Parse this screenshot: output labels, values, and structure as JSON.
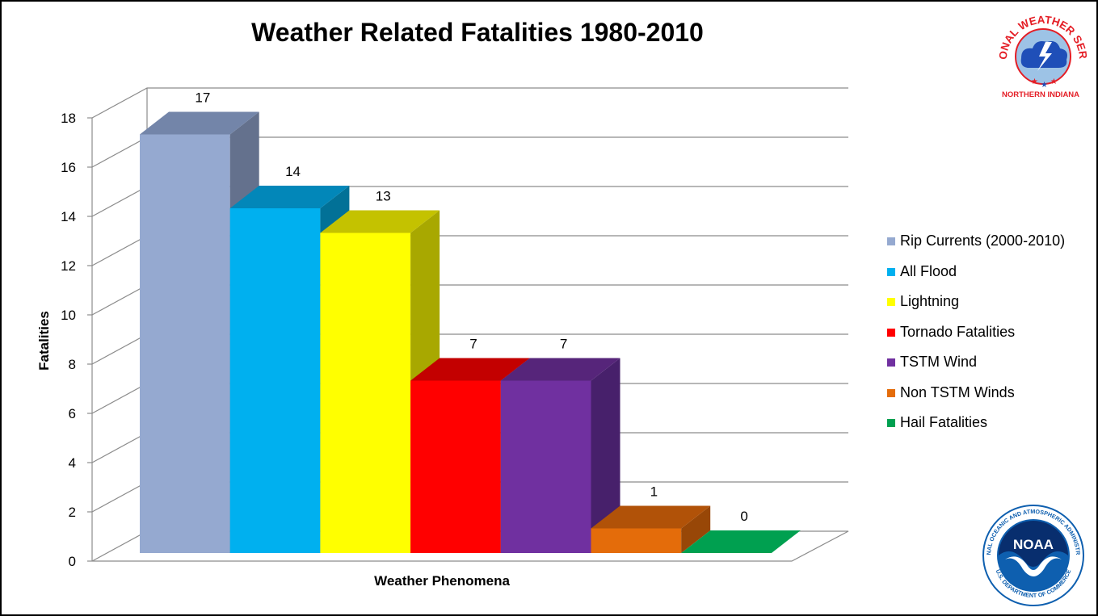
{
  "chart_data": {
    "type": "bar",
    "title": "Weather Related Fatalities 1980-2010",
    "xlabel": "Weather Phenomena",
    "ylabel": "Fatalities",
    "ylim": [
      0,
      18
    ],
    "yticks": [
      "0",
      "2",
      "4",
      "6",
      "8",
      "10",
      "12",
      "14",
      "16",
      "18"
    ],
    "grid": true,
    "legend_position": "right",
    "series": [
      {
        "name": "Rip Currents (2000-2010)",
        "value": 17,
        "label": "17",
        "color": "#95A9D0",
        "top_color": "#7385A9",
        "side_color": "#64718D"
      },
      {
        "name": "All Flood",
        "value": 14,
        "label": "14",
        "color": "#00B0EF",
        "top_color": "#0287B9",
        "side_color": "#027197"
      },
      {
        "name": "Lightning",
        "value": 13,
        "label": "13",
        "color": "#FFFF00",
        "top_color": "#C4C200",
        "side_color": "#A8A800"
      },
      {
        "name": "Tornado Fatalities",
        "value": 7,
        "label": "7",
        "color": "#FF0000",
        "top_color": "#C30000",
        "side_color": "#A80000"
      },
      {
        "name": "TSTM Wind",
        "value": 7,
        "label": "7",
        "color": "#7030A0",
        "top_color": "#56257A",
        "side_color": "#47206B"
      },
      {
        "name": "Non TSTM Winds",
        "value": 1,
        "label": "1",
        "color": "#E46C0A",
        "top_color": "#B15208",
        "side_color": "#984707"
      },
      {
        "name": "Hail Fatalities",
        "value": 0,
        "label": "0",
        "color": "#00A050",
        "top_color": "#00A050",
        "side_color": "#007A3C"
      }
    ]
  },
  "logos": {
    "nws": {
      "arc_text": "NATIONAL WEATHER SERVICE",
      "subtitle": "NORTHERN INDIANA",
      "brand_red": "#E41E26",
      "brand_blue": "#1F4FB8"
    },
    "noaa": {
      "arc_text": "NATIONAL OCEANIC AND ATMOSPHERIC ADMINISTRATION",
      "bottom_text": "U.S. DEPARTMENT OF COMMERCE",
      "center_text": "NOAA",
      "brand_blue": "#0E5FAF"
    }
  }
}
